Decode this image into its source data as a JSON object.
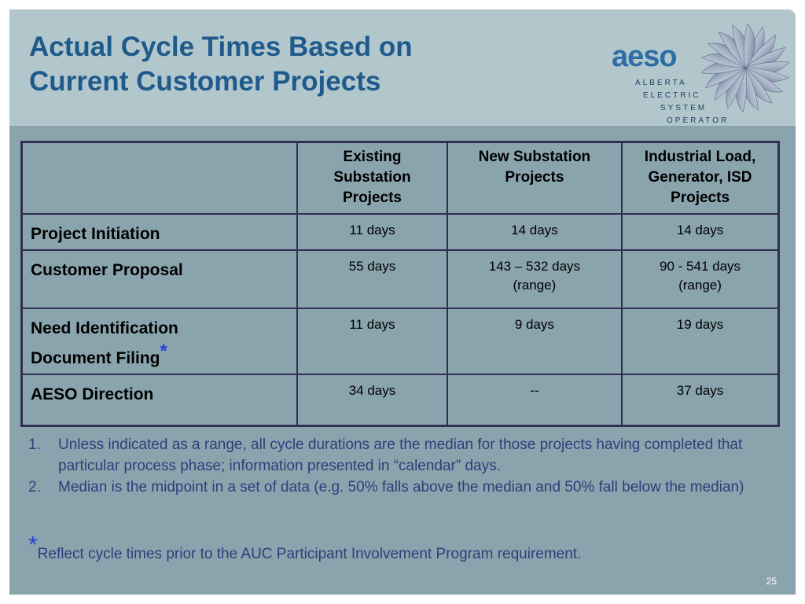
{
  "slide": {
    "title_line1": "Actual Cycle Times Based on",
    "title_line2": "Current Customer Projects",
    "logo": {
      "word": "aeso",
      "line1": "ALBERTA",
      "line2": "ELECTRIC",
      "line3": "SYSTEM",
      "line4": "OPERATOR"
    },
    "colors": {
      "title": "#1f5a8c",
      "header_band": "#b2c7cc",
      "body": "#8aa4ae",
      "note_text": "#2b3f7a",
      "asterisk": "#2a3fd6"
    },
    "table": {
      "columns": [
        "",
        "Existing Substation Projects",
        "New Substation Projects",
        "Industrial Load, Generator, ISD Projects"
      ],
      "rows": [
        {
          "label": "Project Initiation",
          "values": [
            [
              "11 days"
            ],
            [
              "14 days"
            ],
            [
              "14 days"
            ]
          ]
        },
        {
          "label": "Customer Proposal",
          "values": [
            [
              "55 days"
            ],
            [
              "143 – 532 days",
              "(range)"
            ],
            [
              "90 - 541 days",
              "(range)"
            ]
          ]
        },
        {
          "label_line1": "Need Identification",
          "label_line2": "Document Filing",
          "asterisk": "*",
          "values": [
            [
              "11 days"
            ],
            [
              "9 days"
            ],
            [
              "19 days"
            ]
          ]
        },
        {
          "label": "AESO Direction",
          "values": [
            [
              "34 days"
            ],
            [
              "--"
            ],
            [
              "37 days"
            ]
          ]
        }
      ]
    },
    "notes": [
      {
        "num": "1.",
        "text": "Unless indicated as a range, all cycle durations are the median for those projects having completed that particular process phase; information presented in “calendar” days."
      },
      {
        "num": "2.",
        "text": "Median is the midpoint in a set of data (e.g. 50% falls above the median and 50% fall below the median)"
      }
    ],
    "footnote": {
      "asterisk": "*",
      "text": "Reflect cycle times prior to the AUC Participant Involvement Program requirement."
    },
    "page_number": "25"
  }
}
